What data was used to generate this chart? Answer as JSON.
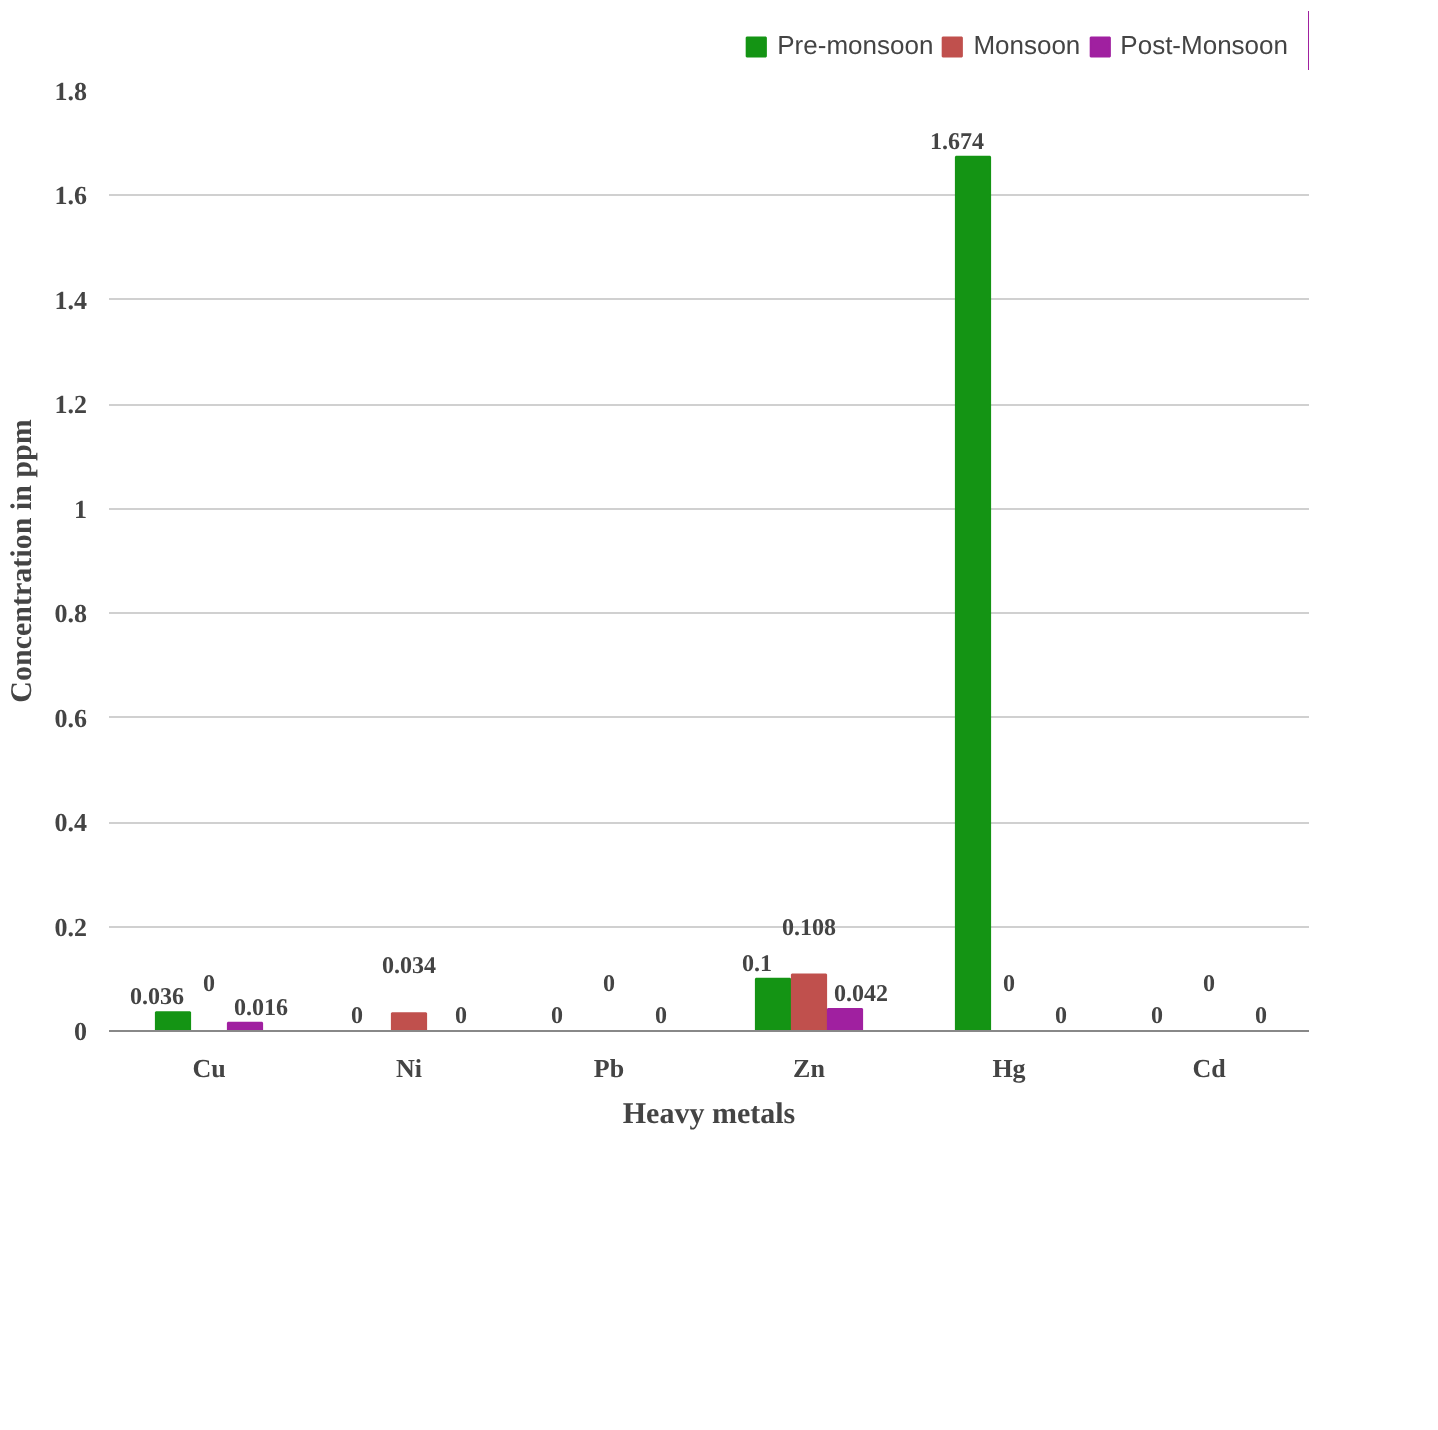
{
  "chart_data": {
    "type": "bar",
    "xlabel": "Heavy metals",
    "ylabel": "Concentration in ppm",
    "categories": [
      "Cu",
      "Ni",
      "Pb",
      "Zn",
      "Hg",
      "Cd"
    ],
    "series": [
      {
        "name": "Pre-monsoon",
        "color": "#149414",
        "values": [
          0.036,
          0,
          0,
          0.1,
          1.674,
          0
        ]
      },
      {
        "name": "Monsoon",
        "color": "#c0504d",
        "values": [
          0,
          0.034,
          0,
          0.108,
          0,
          0
        ]
      },
      {
        "name": "Post-Monsoon",
        "color": "#a020a0",
        "values": [
          0.016,
          0,
          0,
          0.042,
          0,
          0
        ]
      }
    ],
    "ylim": [
      0,
      1.8
    ],
    "yticks": [
      0,
      0.2,
      0.4,
      0.6,
      0.8,
      1,
      1.2,
      1.4,
      1.6,
      1.8
    ],
    "grid": "y",
    "legend": "top right",
    "data_labels": true
  }
}
